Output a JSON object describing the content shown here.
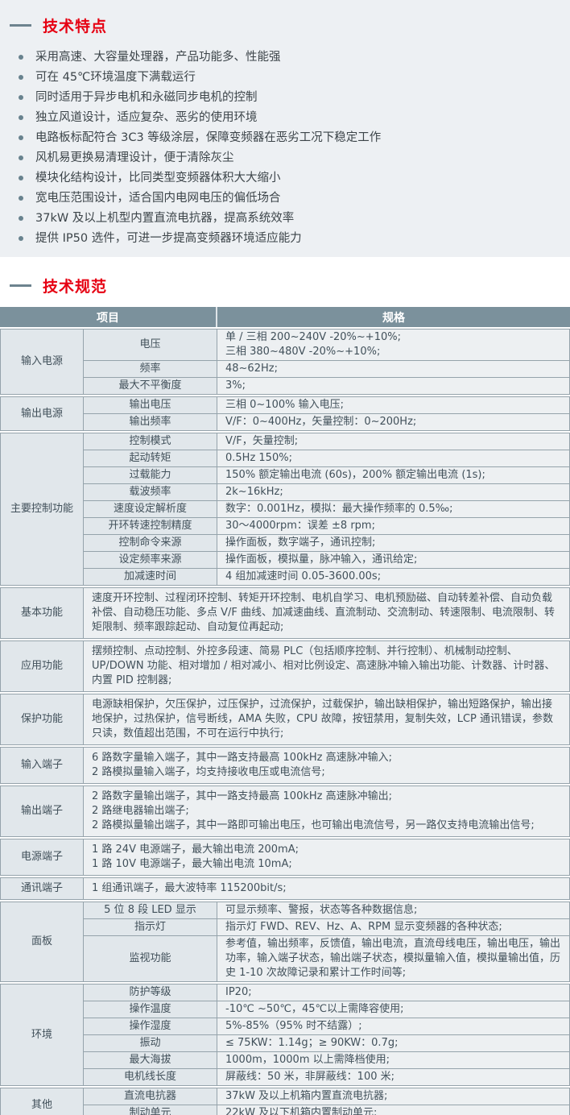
{
  "colors": {
    "accent_red": "#e60012",
    "section_bg": "#edf0f3",
    "table_header_bg": "#7b919c",
    "cell_label_bg": "#e1e7eb",
    "cell_value_bg": "#edf0f2",
    "border": "#95a3ab",
    "text": "#41505a"
  },
  "features": {
    "heading": "技术特点",
    "items": [
      "采用高速、大容量处理器，产品功能多、性能强",
      "可在 45℃环境温度下满载运行",
      "同时适用于异步电机和永磁同步电机的控制",
      "独立风道设计，适应复杂、恶劣的使用环境",
      "电路板标配符合 3C3 等级涂层，保障变频器在恶劣工况下稳定工作",
      "风机易更换易清理设计，便于清除灰尘",
      "模块化结构设计，比同类型变频器体积大大缩小",
      "宽电压范围设计，适合国内电网电压的偏低场合",
      "37kW 及以上机型内置直流电抗器，提高系统效率",
      "提供 IP50 选件，可进一步提高变频器环境适应能力"
    ]
  },
  "specs": {
    "heading": "技术规范",
    "table": {
      "columns": [
        "项目",
        "规格"
      ],
      "groups": [
        {
          "category": "输入电源",
          "rows": [
            {
              "item": "电压",
              "spec": "单 / 三相 200~240V -20%~+10%;\n三相 380~480V -20%~+10%;"
            },
            {
              "item": "频率",
              "spec": "48~62Hz;"
            },
            {
              "item": "最大不平衡度",
              "spec": "3%;"
            }
          ]
        },
        {
          "category": "输出电源",
          "rows": [
            {
              "item": "输出电压",
              "spec": "三相 0~100% 输入电压;"
            },
            {
              "item": "输出频率",
              "spec": "V/F：0~400Hz，矢量控制：0~200Hz;"
            }
          ]
        },
        {
          "category": "主要控制功能",
          "rows": [
            {
              "item": "控制模式",
              "spec": "V/F，矢量控制;"
            },
            {
              "item": "起动转矩",
              "spec": "0.5Hz 150%;"
            },
            {
              "item": "过载能力",
              "spec": "150% 额定输出电流 (60s)，200% 额定输出电流 (1s);"
            },
            {
              "item": "载波频率",
              "spec": "2k~16kHz;"
            },
            {
              "item": "速度设定解析度",
              "spec": "数字：0.001Hz，模拟：最大操作频率的 0.5‰;"
            },
            {
              "item": "开环转速控制精度",
              "spec": "30～4000rpm：误差 ±8 rpm;"
            },
            {
              "item": "控制命令来源",
              "spec": "操作面板，数字端子，通讯控制;"
            },
            {
              "item": "设定频率来源",
              "spec": "操作面板，模拟量，脉冲输入，通讯给定;"
            },
            {
              "item": "加减速时间",
              "spec": "4 组加减速时间 0.05-3600.00s;"
            }
          ]
        },
        {
          "category": "基本功能",
          "rows": [
            {
              "item": null,
              "spec": "速度开环控制、过程闭环控制、转矩开环控制、电机自学习、电机预励磁、自动转差补偿、自动负载补偿、自动稳压功能、多点 V/F 曲线、加减速曲线、直流制动、交流制动、转速限制、电流限制、转矩限制、频率跟踪起动、自动复位再起动;"
            }
          ]
        },
        {
          "category": "应用功能",
          "rows": [
            {
              "item": null,
              "spec": "摆频控制、点动控制、外控多段速、简易 PLC（包括顺序控制、并行控制）、机械制动控制、UP/DOWN 功能、相对增加 / 相对减小、相对比例设定、高速脉冲输入输出功能、计数器、计时器、内置 PID 控制器;"
            }
          ]
        },
        {
          "category": "保护功能",
          "rows": [
            {
              "item": null,
              "spec": "电源缺相保护，欠压保护，过压保护，过流保护，过载保护，输出缺相保护，输出短路保护，输出接地保护，过热保护，信号断线，AMA 失败，CPU 故障，按钮禁用，复制失效，LCP 通讯错误，参数只读，数值超出范围，不可在运行中执行;"
            }
          ]
        },
        {
          "category": "输入端子",
          "rows": [
            {
              "item": null,
              "spec": "6 路数字量输入端子，其中一路支持最高 100kHz 高速脉冲输入;\n2 路模拟量输入端子，均支持接收电压或电流信号;"
            }
          ]
        },
        {
          "category": "输出端子",
          "rows": [
            {
              "item": null,
              "spec": "2 路数字量输出端子，其中一路支持最高 100kHz 高速脉冲输出;\n2 路继电器输出端子;\n2 路模拟量输出端子，其中一路即可输出电压，也可输出电流信号，另一路仅支持电流输出信号;"
            }
          ]
        },
        {
          "category": "电源端子",
          "rows": [
            {
              "item": null,
              "spec": "1 路 24V 电源端子，最大输出电流 200mA;\n1 路 10V 电源端子，最大输出电流 10mA;"
            }
          ]
        },
        {
          "category": "通讯端子",
          "rows": [
            {
              "item": null,
              "spec": "1 组通讯端子，最大波特率 115200bit/s;"
            }
          ]
        },
        {
          "category": "面板",
          "rows": [
            {
              "item": "5 位 8 段 LED 显示",
              "spec": "可显示频率、警报，状态等各种数据信息;"
            },
            {
              "item": "指示灯",
              "spec": "指示灯 FWD、REV、Hz、A、RPM 显示变频器的各种状态;"
            },
            {
              "item": "监视功能",
              "spec": "参考值，输出频率，反馈值，输出电流，直流母线电压，输出电压，输出功率，输入端子状态，输出端子状态，模拟量输入值，模拟量输出值，历史 1-10 次故障记录和累计工作时间等;"
            }
          ]
        },
        {
          "category": "环境",
          "rows": [
            {
              "item": "防护等级",
              "spec": "IP20;"
            },
            {
              "item": "操作温度",
              "spec": "-10℃ ~50℃，45℃以上需降容使用;"
            },
            {
              "item": "操作湿度",
              "spec": "5%-85%（95% 时不结露）;"
            },
            {
              "item": "振动",
              "spec": "≤ 75KW：1.14g；≥ 90KW：0.7g;"
            },
            {
              "item": "最大海拔",
              "spec": "1000m，1000m 以上需降档使用;"
            },
            {
              "item": "电机线长度",
              "spec": "屏蔽线：50 米，非屏蔽线：100 米;"
            }
          ]
        },
        {
          "category": "其他",
          "rows": [
            {
              "item": "直流电抗器",
              "spec": "37kW 及以上机箱内置直流电抗器;"
            },
            {
              "item": "制动单元",
              "spec": "22kW 及以下机箱内置制动单元;"
            }
          ]
        }
      ]
    }
  }
}
